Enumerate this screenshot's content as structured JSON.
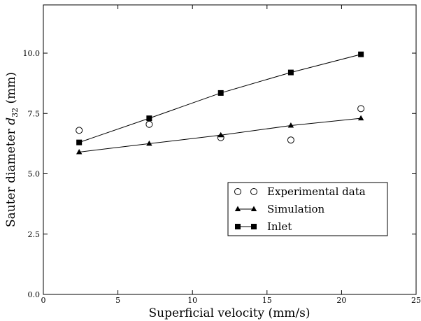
{
  "chart_data": {
    "type": "line",
    "xlabel": "Superficial velocity (mm/s)",
    "ylabel_main": "Sauter diameter ",
    "ylabel_symbol": "d",
    "ylabel_subscript": "32",
    "ylabel_unit": " (mm)",
    "xlim": [
      0,
      25
    ],
    "ylim": [
      0,
      12
    ],
    "x_ticks": [
      0,
      5,
      10,
      15,
      20,
      25
    ],
    "x_tick_labels": [
      "0",
      "5",
      "10",
      "15",
      "20",
      "25"
    ],
    "y_ticks": [
      0,
      2.5,
      5,
      7.5,
      10
    ],
    "y_tick_labels": [
      "0.0",
      "2.5",
      "5.0",
      "7.5",
      "10.0"
    ],
    "grid": false,
    "legend_position": "bottom-right",
    "series": [
      {
        "name": "Experimental data",
        "marker": "open-circle",
        "line": false,
        "x": [
          2.4,
          7.1,
          11.9,
          16.6,
          21.3
        ],
        "y": [
          6.8,
          7.05,
          6.5,
          6.4,
          7.7
        ]
      },
      {
        "name": "Simulation",
        "marker": "filled-triangle",
        "line": true,
        "x": [
          2.4,
          7.1,
          11.9,
          16.6,
          21.3
        ],
        "y": [
          5.9,
          6.25,
          6.6,
          7.0,
          7.3
        ]
      },
      {
        "name": "Inlet",
        "marker": "filled-square",
        "line": true,
        "x": [
          2.4,
          7.1,
          11.9,
          16.6,
          21.3
        ],
        "y": [
          6.3,
          7.3,
          8.35,
          9.2,
          9.95
        ]
      }
    ]
  },
  "colors": {
    "ink": "#000000",
    "background": "#ffffff"
  }
}
